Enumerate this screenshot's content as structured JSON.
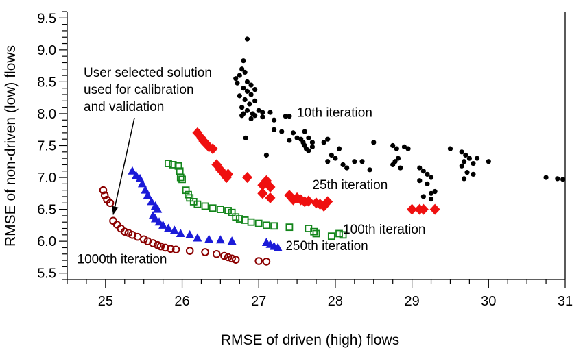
{
  "chart_data": {
    "type": "scatter",
    "xlabel": "RMSE of driven (high) flows",
    "ylabel": "RMSE of non-driven (low) flows",
    "xlim": [
      24.5,
      31
    ],
    "ylim": [
      5.4,
      9.6
    ],
    "x_ticks": [
      "25",
      "26",
      "27",
      "28",
      "29",
      "30",
      "31"
    ],
    "y_ticks": [
      "5.5",
      "6.0",
      "6.5",
      "7.0",
      "7.5",
      "8.0",
      "8.5",
      "9.0",
      "9.5"
    ],
    "grid": false,
    "series": [
      {
        "name": "10th iteration",
        "marker": "dot",
        "color": "#000000",
        "points": [
          [
            26.85,
            9.17
          ],
          [
            26.8,
            8.83
          ],
          [
            26.78,
            8.7
          ],
          [
            26.82,
            8.65
          ],
          [
            26.75,
            8.6
          ],
          [
            26.7,
            8.55
          ],
          [
            26.72,
            8.48
          ],
          [
            26.85,
            8.5
          ],
          [
            26.9,
            8.45
          ],
          [
            26.8,
            8.4
          ],
          [
            26.95,
            8.38
          ],
          [
            26.85,
            8.35
          ],
          [
            26.9,
            8.3
          ],
          [
            26.75,
            8.28
          ],
          [
            26.82,
            8.22
          ],
          [
            26.95,
            8.2
          ],
          [
            26.88,
            8.15
          ],
          [
            26.78,
            8.1
          ],
          [
            26.85,
            8.05
          ],
          [
            27.0,
            8.05
          ],
          [
            26.8,
            8.0
          ],
          [
            26.92,
            8.0
          ],
          [
            27.05,
            8.02
          ],
          [
            27.15,
            8.02
          ],
          [
            26.95,
            7.97
          ],
          [
            27.05,
            7.95
          ],
          [
            26.9,
            7.92
          ],
          [
            26.78,
            7.97
          ],
          [
            27.2,
            7.9
          ],
          [
            27.35,
            7.96
          ],
          [
            27.4,
            7.96
          ],
          [
            27.2,
            7.75
          ],
          [
            27.3,
            7.72
          ],
          [
            27.45,
            7.7
          ],
          [
            27.6,
            7.72
          ],
          [
            27.4,
            7.58
          ],
          [
            27.5,
            7.62
          ],
          [
            27.55,
            7.6
          ],
          [
            27.65,
            7.62
          ],
          [
            27.7,
            7.55
          ],
          [
            27.58,
            7.55
          ],
          [
            27.6,
            7.5
          ],
          [
            27.62,
            7.45
          ],
          [
            27.65,
            7.42
          ],
          [
            27.7,
            7.48
          ],
          [
            27.9,
            7.6
          ],
          [
            27.85,
            7.55
          ],
          [
            27.95,
            7.35
          ],
          [
            28.0,
            7.3
          ],
          [
            27.9,
            7.25
          ],
          [
            28.05,
            7.45
          ],
          [
            28.1,
            7.2
          ],
          [
            28.15,
            7.15
          ],
          [
            28.25,
            7.25
          ],
          [
            28.35,
            7.25
          ],
          [
            28.5,
            7.55
          ],
          [
            28.45,
            7.12
          ],
          [
            28.75,
            7.5
          ],
          [
            28.8,
            7.45
          ],
          [
            28.9,
            7.48
          ],
          [
            28.95,
            7.45
          ],
          [
            28.82,
            7.3
          ],
          [
            28.78,
            7.25
          ],
          [
            28.85,
            7.15
          ],
          [
            28.75,
            7.2
          ],
          [
            29.1,
            7.15
          ],
          [
            29.15,
            7.1
          ],
          [
            29.2,
            7.05
          ],
          [
            29.25,
            7.0
          ],
          [
            29.1,
            6.95
          ],
          [
            29.2,
            6.9
          ],
          [
            29.3,
            6.78
          ],
          [
            29.25,
            6.75
          ],
          [
            29.15,
            6.7
          ],
          [
            29.25,
            6.66
          ],
          [
            29.5,
            7.45
          ],
          [
            29.65,
            7.4
          ],
          [
            29.7,
            7.35
          ],
          [
            29.75,
            7.3
          ],
          [
            29.68,
            7.25
          ],
          [
            29.8,
            7.22
          ],
          [
            29.65,
            7.18
          ],
          [
            29.72,
            7.08
          ],
          [
            29.8,
            7.05
          ],
          [
            29.68,
            6.98
          ],
          [
            29.85,
            7.3
          ],
          [
            30.0,
            7.25
          ],
          [
            26.83,
            7.62
          ],
          [
            27.1,
            7.35
          ],
          [
            30.75,
            7.0
          ],
          [
            30.9,
            6.98
          ],
          [
            30.97,
            6.97
          ]
        ]
      },
      {
        "name": "25th iteration",
        "marker": "diamond",
        "color": "#ef1010",
        "points": [
          [
            26.2,
            7.7
          ],
          [
            26.25,
            7.62
          ],
          [
            26.28,
            7.57
          ],
          [
            26.32,
            7.52
          ],
          [
            26.35,
            7.48
          ],
          [
            26.4,
            7.45
          ],
          [
            26.45,
            7.2
          ],
          [
            26.5,
            7.12
          ],
          [
            26.55,
            7.05
          ],
          [
            26.58,
            7.0
          ],
          [
            26.6,
            7.05
          ],
          [
            26.85,
            7.0
          ],
          [
            27.1,
            6.95
          ],
          [
            27.05,
            6.88
          ],
          [
            27.15,
            6.85
          ],
          [
            27.05,
            6.75
          ],
          [
            27.15,
            6.68
          ],
          [
            27.4,
            6.72
          ],
          [
            27.45,
            6.65
          ],
          [
            27.5,
            6.68
          ],
          [
            27.55,
            6.65
          ],
          [
            27.6,
            6.62
          ],
          [
            27.65,
            6.63
          ],
          [
            27.75,
            6.6
          ],
          [
            27.8,
            6.58
          ],
          [
            27.85,
            6.55
          ],
          [
            27.9,
            6.62
          ],
          [
            29.0,
            6.5
          ],
          [
            29.1,
            6.5
          ],
          [
            29.15,
            6.5
          ],
          [
            29.3,
            6.5
          ]
        ]
      },
      {
        "name": "100th iteration",
        "marker": "square",
        "color": "#13851b",
        "points": [
          [
            25.82,
            7.22
          ],
          [
            25.88,
            7.2
          ],
          [
            25.95,
            7.18
          ],
          [
            25.97,
            7.1
          ],
          [
            25.98,
            7.0
          ],
          [
            26.0,
            6.97
          ],
          [
            26.05,
            6.8
          ],
          [
            26.08,
            6.73
          ],
          [
            26.1,
            6.68
          ],
          [
            26.15,
            6.62
          ],
          [
            26.2,
            6.58
          ],
          [
            26.3,
            6.55
          ],
          [
            26.4,
            6.52
          ],
          [
            26.5,
            6.5
          ],
          [
            26.6,
            6.48
          ],
          [
            26.65,
            6.45
          ],
          [
            26.7,
            6.38
          ],
          [
            26.75,
            6.35
          ],
          [
            26.82,
            6.33
          ],
          [
            26.9,
            6.3
          ],
          [
            27.0,
            6.28
          ],
          [
            27.1,
            6.25
          ],
          [
            27.2,
            6.24
          ],
          [
            27.4,
            6.22
          ],
          [
            27.65,
            6.2
          ],
          [
            27.72,
            6.15
          ],
          [
            27.75,
            6.12
          ],
          [
            27.95,
            6.08
          ],
          [
            28.05,
            6.12
          ],
          [
            28.1,
            6.1
          ]
        ]
      },
      {
        "name": "250th iteration",
        "marker": "triangle",
        "color": "#1b1bd8",
        "points": [
          [
            25.35,
            7.1
          ],
          [
            25.4,
            7.03
          ],
          [
            25.45,
            6.98
          ],
          [
            25.48,
            6.9
          ],
          [
            25.52,
            6.8
          ],
          [
            25.55,
            6.72
          ],
          [
            25.6,
            6.62
          ],
          [
            25.65,
            6.55
          ],
          [
            25.68,
            6.5
          ],
          [
            25.62,
            6.4
          ],
          [
            25.65,
            6.35
          ],
          [
            25.7,
            6.3
          ],
          [
            25.75,
            6.25
          ],
          [
            25.82,
            6.2
          ],
          [
            25.9,
            6.17
          ],
          [
            25.98,
            6.12
          ],
          [
            26.1,
            6.1
          ],
          [
            26.2,
            6.05
          ],
          [
            26.35,
            6.03
          ],
          [
            26.5,
            6.02
          ],
          [
            26.65,
            6.0
          ],
          [
            27.1,
            5.98
          ],
          [
            27.15,
            5.95
          ],
          [
            27.2,
            5.92
          ],
          [
            27.25,
            5.9
          ]
        ]
      },
      {
        "name": "1000th iteration",
        "marker": "circle",
        "color": "#8b0000",
        "points": [
          [
            24.97,
            6.8
          ],
          [
            24.99,
            6.72
          ],
          [
            25.02,
            6.65
          ],
          [
            25.06,
            6.6
          ],
          [
            25.1,
            6.32
          ],
          [
            25.15,
            6.26
          ],
          [
            25.2,
            6.2
          ],
          [
            25.25,
            6.15
          ],
          [
            25.3,
            6.13
          ],
          [
            25.35,
            6.1
          ],
          [
            25.42,
            6.07
          ],
          [
            25.5,
            6.03
          ],
          [
            25.55,
            6.0
          ],
          [
            25.62,
            5.97
          ],
          [
            25.68,
            5.94
          ],
          [
            25.72,
            5.92
          ],
          [
            25.78,
            5.9
          ],
          [
            25.85,
            5.88
          ],
          [
            25.92,
            5.87
          ],
          [
            26.1,
            5.85
          ],
          [
            26.3,
            5.83
          ],
          [
            26.45,
            5.8
          ],
          [
            26.55,
            5.77
          ],
          [
            26.6,
            5.75
          ],
          [
            26.65,
            5.73
          ],
          [
            26.7,
            5.71
          ],
          [
            27.0,
            5.69
          ],
          [
            27.1,
            5.68
          ]
        ]
      }
    ],
    "annotations": [
      {
        "name": "user-selected-note",
        "lines": [
          "User selected solution",
          "used for calibration",
          "and validation"
        ],
        "arrow_to": [
          25.1,
          6.32
        ]
      }
    ],
    "series_labels": [
      {
        "series": "10th iteration",
        "text": "10th iteration",
        "x": 27.5,
        "y": 7.95
      },
      {
        "series": "25th iteration",
        "text": "25th iteration",
        "x": 27.7,
        "y": 6.82
      },
      {
        "series": "100th iteration",
        "text": "100th iteration",
        "x": 28.1,
        "y": 6.12
      },
      {
        "series": "250th iteration",
        "text": "250th iteration",
        "x": 27.35,
        "y": 5.86
      },
      {
        "series": "1000th iteration",
        "text": "1000th iteration",
        "x": 24.63,
        "y": 5.65
      }
    ]
  }
}
